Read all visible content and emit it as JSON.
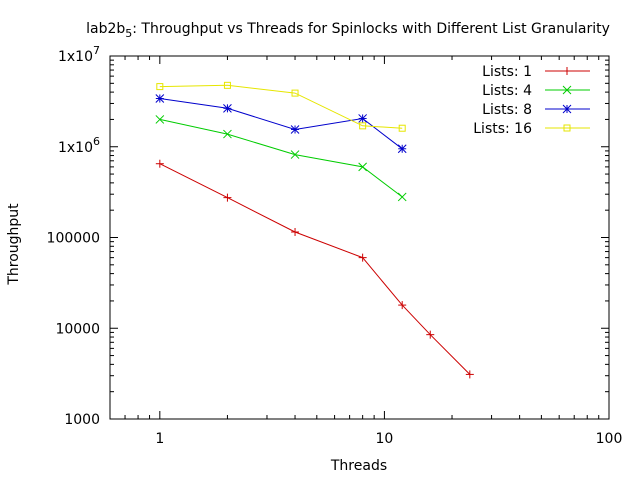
{
  "chart_data": {
    "type": "line",
    "title": "lab2b_5: Throughput vs Threads for Spinlocks with Different List Granularity",
    "title_main": "lab2b",
    "title_sub": "5",
    "title_rest": ": Throughput vs Threads for Spinlocks with Different List Granularity",
    "xlabel": "Threads",
    "ylabel": "Throughput",
    "x_scale": "log",
    "y_scale": "log",
    "xlim": [
      0.6,
      100
    ],
    "ylim": [
      1000,
      10000000
    ],
    "x_ticks": [
      {
        "value": 1,
        "label": "1"
      },
      {
        "value": 10,
        "label": "10"
      },
      {
        "value": 100,
        "label": "100"
      }
    ],
    "y_ticks": [
      {
        "value": 1000,
        "label": "1000"
      },
      {
        "value": 10000,
        "label": "10000"
      },
      {
        "value": 100000,
        "label": "100000"
      },
      {
        "value": 1000000,
        "label": "1x10",
        "sup": "6"
      },
      {
        "value": 10000000,
        "label": "1x10",
        "sup": "7"
      }
    ],
    "grid": false,
    "legend_position": "top-right",
    "series": [
      {
        "name": "Lists: 1",
        "color": "#cc0000",
        "marker": "plus",
        "x": [
          1,
          2,
          4,
          8,
          12,
          16,
          24
        ],
        "y": [
          650000,
          275000,
          115000,
          60000,
          18000,
          8500,
          3100
        ]
      },
      {
        "name": "Lists: 4",
        "color": "#00cc00",
        "marker": "cross",
        "x": [
          1,
          2,
          4,
          8,
          12
        ],
        "y": [
          2000000,
          1380000,
          820000,
          600000,
          280000
        ]
      },
      {
        "name": "Lists: 8",
        "color": "#0000cc",
        "marker": "star",
        "x": [
          1,
          2,
          4,
          8,
          12
        ],
        "y": [
          3400000,
          2650000,
          1550000,
          2050000,
          950000
        ]
      },
      {
        "name": "Lists: 16",
        "color": "#e6e600",
        "marker": "square",
        "x": [
          1,
          2,
          4,
          8,
          12
        ],
        "y": [
          4600000,
          4750000,
          3900000,
          1700000,
          1600000
        ]
      }
    ]
  }
}
